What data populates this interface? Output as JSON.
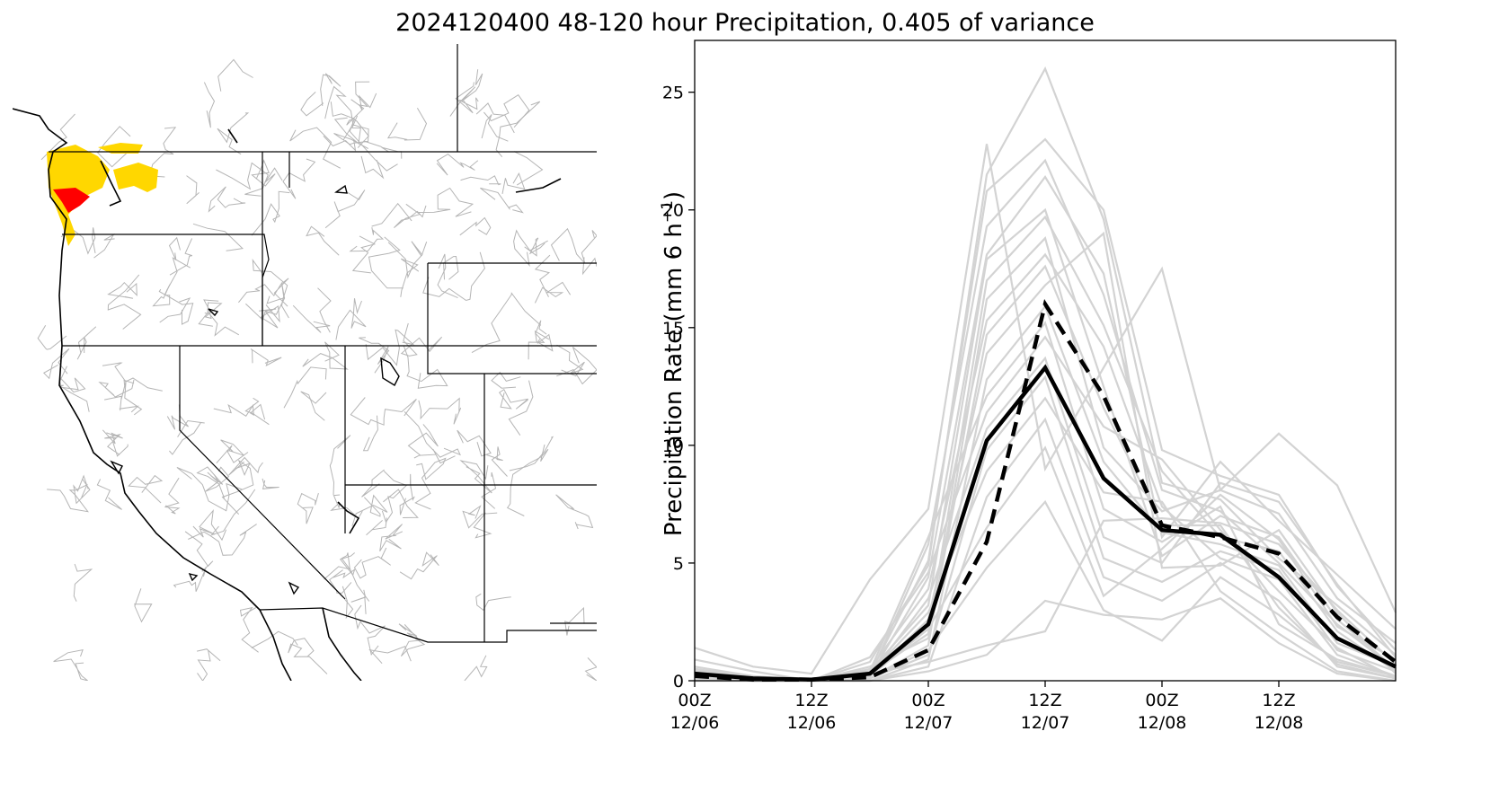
{
  "figure": {
    "title": "2024120400 48-120 hour Precipitation, 0.405 of variance"
  },
  "map": {
    "fill_colors": {
      "moderate": "#ffd700",
      "high": "#ff0000"
    },
    "border_color": "#000000",
    "basin_color": "#b5b5b5"
  },
  "chart_data": {
    "type": "line",
    "ylabel_main": "Precipitation Rate (mm 6 h",
    "ylabel_exp": "−1",
    "ylabel_close": ")",
    "ylim": [
      0,
      27.2
    ],
    "xlim": [
      0,
      12
    ],
    "yticks": [
      0,
      5,
      10,
      15,
      20,
      25
    ],
    "xticks": [
      {
        "pos": 0,
        "line1": "00Z",
        "line2": "12/06"
      },
      {
        "pos": 2,
        "line1": "12Z",
        "line2": "12/06"
      },
      {
        "pos": 4,
        "line1": "00Z",
        "line2": "12/07"
      },
      {
        "pos": 6,
        "line1": "12Z",
        "line2": "12/07"
      },
      {
        "pos": 8,
        "line1": "00Z",
        "line2": "12/08"
      },
      {
        "pos": 10,
        "line1": "12Z",
        "line2": "12/08"
      }
    ],
    "x": [
      0,
      1,
      2,
      3,
      4,
      5,
      6,
      7,
      8,
      9,
      10,
      11,
      12
    ],
    "series": [
      {
        "style": "mean",
        "color": "#000000",
        "values": [
          0.3,
          0.1,
          0.05,
          0.3,
          2.4,
          10.2,
          13.3,
          8.6,
          6.4,
          6.2,
          4.4,
          1.8,
          0.6
        ]
      },
      {
        "style": "dashed",
        "color": "#000000",
        "values": [
          0.2,
          0.05,
          0.05,
          0.15,
          1.3,
          5.9,
          16.0,
          12.1,
          6.6,
          6.1,
          5.4,
          2.7,
          0.8
        ]
      }
    ],
    "ensemble_color": "#d3d3d3",
    "ensemble": [
      [
        1.4,
        0.6,
        0.3,
        4.3,
        7.3,
        22.8,
        9.0,
        13.3,
        17.5,
        8.1,
        10.5,
        8.3,
        2.9
      ],
      [
        0.9,
        0.4,
        0.0,
        0.8,
        4.9,
        21.5,
        26.0,
        19.6,
        8.4,
        7.7,
        5.2,
        3.2,
        1.1
      ],
      [
        0.5,
        0.2,
        0.0,
        0.3,
        5.1,
        20.8,
        23.0,
        20.0,
        9.8,
        8.7,
        7.9,
        4.0,
        1.3
      ],
      [
        0.3,
        0.1,
        0.0,
        0.2,
        4.4,
        18.1,
        21.4,
        17.3,
        6.1,
        9.3,
        6.8,
        4.5,
        2.2
      ],
      [
        0.2,
        0.0,
        0.0,
        0.4,
        3.2,
        17.9,
        20.0,
        12.5,
        5.3,
        7.0,
        6.1,
        2.6,
        0.5
      ],
      [
        0.1,
        0.0,
        0.0,
        0.3,
        2.0,
        17.0,
        19.7,
        15.1,
        8.9,
        6.1,
        5.5,
        2.1,
        0.4
      ],
      [
        0.0,
        0.0,
        0.0,
        0.1,
        1.5,
        16.2,
        18.8,
        9.9,
        7.2,
        8.1,
        7.1,
        3.5,
        1.6
      ],
      [
        0.4,
        0.1,
        0.0,
        0.5,
        3.9,
        15.3,
        18.1,
        14.2,
        7.4,
        5.2,
        4.3,
        1.1,
        0.2
      ],
      [
        0.6,
        0.2,
        0.0,
        0.6,
        1.8,
        14.7,
        17.6,
        11.6,
        6.6,
        6.6,
        3.1,
        0.7,
        0.1
      ],
      [
        0.2,
        0.1,
        0.0,
        0.2,
        2.6,
        13.9,
        16.8,
        19.0,
        4.8,
        4.9,
        6.4,
        2.9,
        0.3
      ],
      [
        0.1,
        0.0,
        0.0,
        0.0,
        0.9,
        12.8,
        15.9,
        9.3,
        6.3,
        5.8,
        4.9,
        1.6,
        0.6
      ],
      [
        0.3,
        0.0,
        0.0,
        0.4,
        6.1,
        12.1,
        15.2,
        7.3,
        5.9,
        7.4,
        2.4,
        0.9,
        0.2
      ],
      [
        0.5,
        0.1,
        0.0,
        1.0,
        4.6,
        11.4,
        14.6,
        10.8,
        9.4,
        6.4,
        3.8,
        1.4,
        0.1
      ],
      [
        0.2,
        0.0,
        0.0,
        0.2,
        3.5,
        10.7,
        13.7,
        6.1,
        5.0,
        8.4,
        7.6,
        4.1,
        1.0
      ],
      [
        0.0,
        0.0,
        0.0,
        0.1,
        1.1,
        9.8,
        12.9,
        5.2,
        4.2,
        5.5,
        4.7,
        1.3,
        0.4
      ],
      [
        0.3,
        0.1,
        0.0,
        0.3,
        2.9,
        8.9,
        12.0,
        8.0,
        7.6,
        3.8,
        2.0,
        0.4,
        0.0
      ],
      [
        0.1,
        0.0,
        0.0,
        0.0,
        0.6,
        7.8,
        11.1,
        4.4,
        3.4,
        5.0,
        3.4,
        0.6,
        0.1
      ],
      [
        0.4,
        0.1,
        0.0,
        0.2,
        2.2,
        6.5,
        9.9,
        3.6,
        5.6,
        7.9,
        6.0,
        2.3,
        0.9
      ],
      [
        0.2,
        0.0,
        0.0,
        0.1,
        1.3,
        4.8,
        7.6,
        3.0,
        1.7,
        4.4,
        2.8,
        0.8,
        0.2
      ],
      [
        0.1,
        0.0,
        0.0,
        0.0,
        0.4,
        1.1,
        3.4,
        2.8,
        2.6,
        3.5,
        1.6,
        0.3,
        0.0
      ],
      [
        0.3,
        0.0,
        0.0,
        0.3,
        0.8,
        1.5,
        2.1,
        6.8,
        6.9,
        6.7,
        5.8,
        3.0,
        0.7
      ],
      [
        0.2,
        0.1,
        0.0,
        0.2,
        5.8,
        19.3,
        22.1,
        16.4,
        8.1,
        7.2,
        5.0,
        2.4,
        0.5
      ]
    ]
  }
}
